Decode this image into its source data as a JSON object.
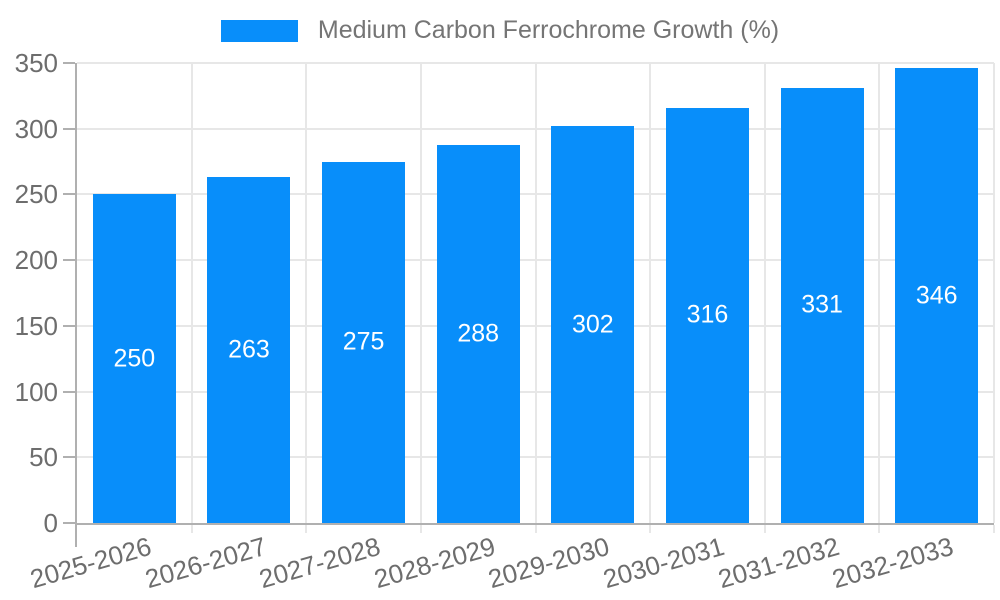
{
  "legend": {
    "label": "Medium Carbon Ferrochrome Growth (%)"
  },
  "chart_data": {
    "type": "bar",
    "title": "",
    "legend_entries": [
      "Medium Carbon Ferrochrome Growth (%)"
    ],
    "legend_position": "top-center",
    "categories": [
      "2025-2026",
      "2026-2027",
      "2027-2028",
      "2028-2029",
      "2029-2030",
      "2030-2031",
      "2031-2032",
      "2032-2033"
    ],
    "series": [
      {
        "name": "Medium Carbon Ferrochrome Growth (%)",
        "values": [
          250,
          263,
          275,
          288,
          302,
          316,
          331,
          346
        ]
      }
    ],
    "value_labels": [
      "250",
      "263",
      "275",
      "288",
      "302",
      "316",
      "331",
      "346"
    ],
    "value_label_position": "inside-middle",
    "xlabel": "",
    "ylabel": "",
    "ylim": [
      0,
      350
    ],
    "yticks": [
      0,
      50,
      100,
      150,
      200,
      250,
      300,
      350
    ],
    "grid": true,
    "x_tick_label_rotation_deg": -16,
    "colors": {
      "bar": "#088efa",
      "grid": "#e7e7e7",
      "axis": "#b0b0b0",
      "tick_label": "#6d6d6d",
      "legend_text": "#757575",
      "value_label": "#ffffff",
      "background": "#ffffff"
    }
  }
}
